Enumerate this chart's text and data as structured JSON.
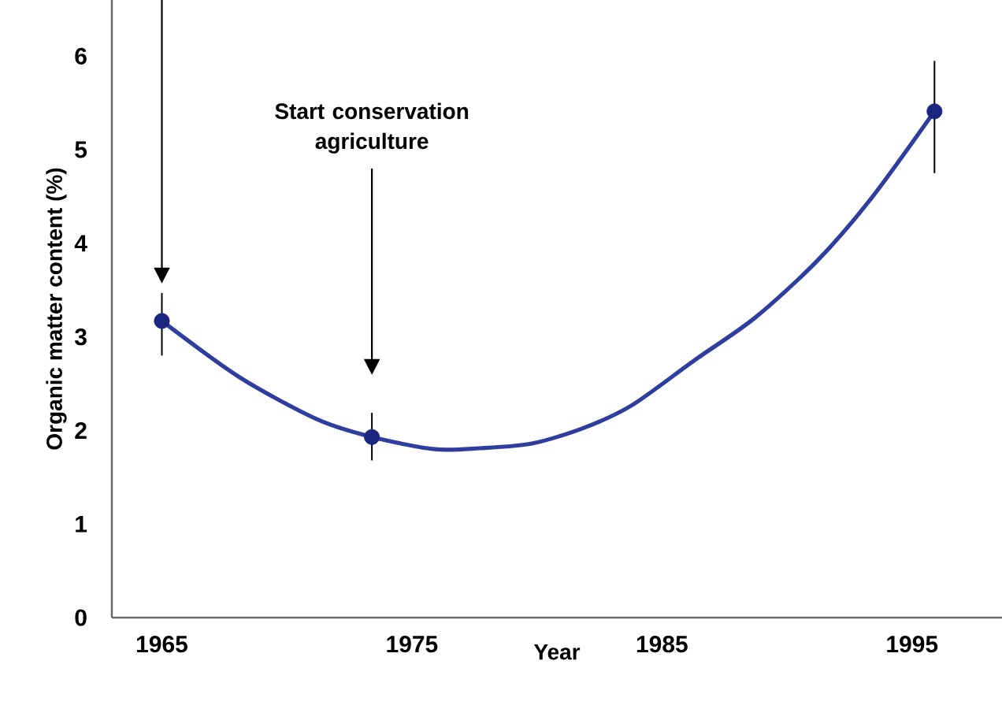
{
  "chart_data": {
    "type": "line",
    "xlabel": "Year",
    "ylabel": "Organic matter content (%)",
    "xlim": [
      1963,
      1998.6
    ],
    "ylim": [
      0,
      6.6
    ],
    "xticks": [
      1965,
      1975,
      1985,
      1995
    ],
    "yticks": [
      0,
      1,
      2,
      3,
      4,
      5,
      6
    ],
    "annotations": [
      "Start conservation agriculture"
    ],
    "series": [
      {
        "color": "#2e3d9e",
        "marker": "none",
        "line_style": "solid",
        "x": [
          1965,
          1968.1,
          1971.2,
          1973.4,
          1975.9,
          1977.7,
          1979.8,
          1981.9,
          1983.8,
          1986.3,
          1988.7,
          1991.2,
          1993.4,
          1995.9
        ],
        "values": [
          3.17,
          2.57,
          2.12,
          1.93,
          1.8,
          1.81,
          1.86,
          2.03,
          2.27,
          2.75,
          3.2,
          3.81,
          4.49,
          5.41
        ]
      },
      {
        "type": "scatter",
        "color": "#1c2580",
        "marker": "circle",
        "x": [
          1965,
          1973.4,
          1995.9
        ],
        "values": [
          3.17,
          1.93,
          5.41
        ],
        "errors": [
          [
            2.8,
            3.47
          ],
          [
            1.68,
            2.19
          ],
          [
            4.75,
            5.95
          ]
        ]
      }
    ]
  }
}
